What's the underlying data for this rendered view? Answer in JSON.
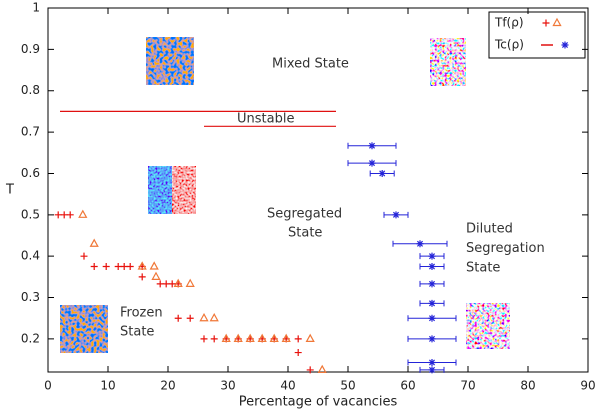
{
  "chart_data": {
    "type": "scatter",
    "xlabel": "Percentage of vacancies",
    "ylabel": "T",
    "xlim": [
      0,
      90
    ],
    "ylim": [
      0.12,
      1
    ],
    "xticks": [
      0,
      10,
      20,
      30,
      40,
      50,
      60,
      70,
      80,
      90
    ],
    "yticks": [
      0.2,
      0.3,
      0.4,
      0.5,
      0.6,
      0.7,
      0.8,
      0.9,
      1
    ],
    "series": [
      {
        "name": "Tf(ρ)",
        "color": "#e8100b",
        "marker": "plus",
        "x": [
          1.7,
          2.7,
          3.7,
          6,
          7.7,
          9.7,
          11.7,
          12.7,
          13.7,
          15.7,
          15.7,
          18.7,
          19.7,
          20.7,
          21.7,
          21.7,
          23.7,
          26,
          27.7,
          29.7,
          31.7,
          33.7,
          35.7,
          37.7,
          39.7,
          41.7,
          41.7,
          43.7
        ],
        "values": [
          0.5,
          0.5,
          0.5,
          0.4,
          0.375,
          0.375,
          0.375,
          0.375,
          0.375,
          0.375,
          0.35,
          0.333,
          0.333,
          0.333,
          0.333,
          0.25,
          0.25,
          0.2,
          0.2,
          0.2,
          0.2,
          0.2,
          0.2,
          0.2,
          0.2,
          0.2,
          0.167,
          0.125
        ]
      },
      {
        "color": "#f07838",
        "marker": "triangle",
        "x": [
          5.8,
          7.7,
          15.7,
          17.7,
          18,
          21.7,
          23.7,
          26,
          27.7,
          29.7,
          31.7,
          33.7,
          35.7,
          37.7,
          39.7,
          43.7,
          45.7
        ],
        "values": [
          0.5,
          0.43,
          0.375,
          0.375,
          0.35,
          0.333,
          0.333,
          0.25,
          0.25,
          0.2,
          0.2,
          0.2,
          0.2,
          0.2,
          0.2,
          0.2,
          0.125
        ]
      },
      {
        "name": "Tc(ρ)",
        "color": "#2424d8",
        "marker": "star",
        "x": [
          54,
          54,
          55.7,
          58,
          62,
          64,
          64,
          64,
          64,
          64,
          64,
          64,
          64
        ],
        "values": [
          0.667,
          0.625,
          0.6,
          0.5,
          0.43,
          0.4,
          0.375,
          0.333,
          0.286,
          0.25,
          0.2,
          0.143,
          0.125
        ],
        "xerr": [
          4,
          4,
          2,
          2,
          4.5,
          2,
          2,
          2,
          2,
          4,
          4,
          4,
          2
        ]
      }
    ],
    "lines": [
      {
        "color": "#e01010",
        "x": [
          2,
          48
        ],
        "values": [
          0.75,
          0.75
        ]
      },
      {
        "color": "#e01010",
        "x": [
          26,
          48
        ],
        "values": [
          0.714,
          0.714
        ]
      }
    ],
    "annotations": [
      [
        "Mixed State"
      ],
      [
        "Unstable"
      ],
      [
        "Segregated",
        "State"
      ],
      [
        "Diluted",
        "Segregation",
        "State"
      ],
      [
        "Frozen",
        "State"
      ]
    ]
  }
}
